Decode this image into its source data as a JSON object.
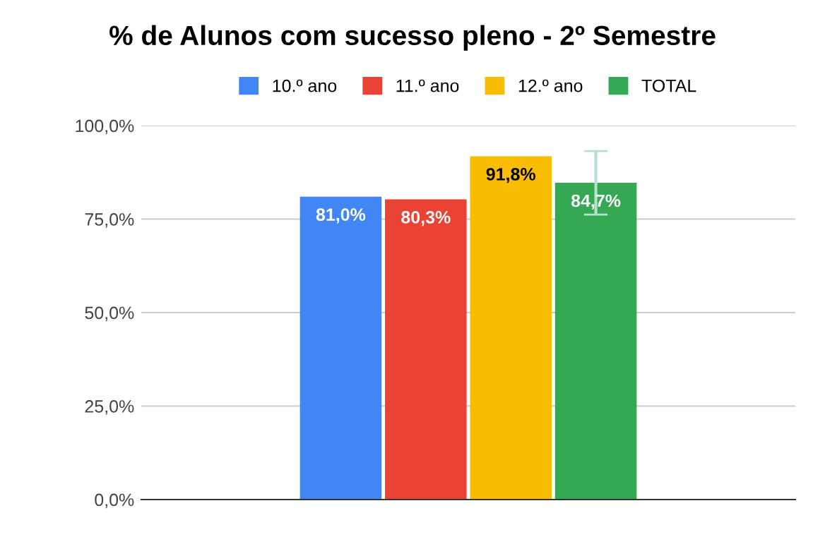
{
  "chart_data": {
    "type": "bar",
    "title": "% de Alunos com sucesso pleno - 2º Semestre",
    "categories": [
      null
    ],
    "series": [
      {
        "name": "10.º ano",
        "color": "#4285f4",
        "values": [
          81.0
        ],
        "value_labels": [
          "81,0%"
        ]
      },
      {
        "name": "11.º ano",
        "color": "#ea4335",
        "values": [
          80.3
        ],
        "value_labels": [
          "80,3%"
        ]
      },
      {
        "name": "12.º ano",
        "color": "#fbbc04",
        "values": [
          91.8
        ],
        "value_labels": [
          "91,8%"
        ]
      },
      {
        "name": "TOTAL",
        "color": "#34a853",
        "values": [
          84.7
        ],
        "value_labels": [
          "84,7%"
        ],
        "errors": [
          8.5
        ]
      }
    ],
    "ylim": [
      0,
      100
    ],
    "yticks": [
      {
        "value": 0,
        "label": "0,0%"
      },
      {
        "value": 25,
        "label": "25,0%"
      },
      {
        "value": 50,
        "label": "50,0%"
      },
      {
        "value": 75,
        "label": "75,0%"
      },
      {
        "value": 100,
        "label": "100,0%"
      }
    ],
    "grid": "y",
    "legend": "top"
  }
}
